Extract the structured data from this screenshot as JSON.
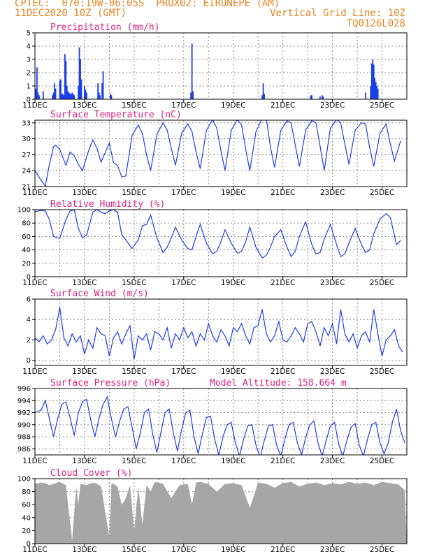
{
  "header": {
    "line1": "CPTEC:  070:19W-06:05S  PROX02: EIRUNEPE (AM)",
    "line2_left": "11DEC2020 10Z (GMT)",
    "line2_right": "Vertical Grid Line: 10Z",
    "line3_right": "TQ0126L028"
  },
  "x_tick_labels": [
    "11DEC",
    "13DEC",
    "15DEC",
    "17DEC",
    "19DEC",
    "21DEC",
    "23DEC",
    "25DEC"
  ],
  "chart_data": [
    {
      "type": "bar",
      "title": "Precipitation (mm/h)",
      "ylim": [
        0,
        5
      ],
      "yticks": [
        0,
        1,
        2,
        3,
        4,
        5
      ],
      "color": "#1a3ee8",
      "x_unit": "hours since 11DEC2020 10Z",
      "x": [
        1,
        2,
        3,
        4,
        8,
        17,
        18,
        19,
        20,
        24,
        25,
        26,
        27,
        28,
        29,
        30,
        31,
        32,
        33,
        34,
        35,
        36,
        37,
        38,
        42,
        43,
        44,
        45,
        48,
        49,
        50,
        61,
        62,
        63,
        65,
        66,
        73,
        74,
        151,
        152,
        153,
        220,
        221,
        222,
        267,
        268,
        276,
        278,
        279,
        320,
        325,
        326,
        327,
        328,
        329,
        330,
        331,
        332
      ],
      "values": [
        0.8,
        2.4,
        0.5,
        0.3,
        0.6,
        0.3,
        0.5,
        1.2,
        0.8,
        1.4,
        1.5,
        0.4,
        0.4,
        0.3,
        3.4,
        2.9,
        1.0,
        0.6,
        0.5,
        0.4,
        0.4,
        0.5,
        0.4,
        0.3,
        1.0,
        3.9,
        3.0,
        1.5,
        1.0,
        0.7,
        0.5,
        1.2,
        0.5,
        0.3,
        1.2,
        2.1,
        0.4,
        0.3,
        0.5,
        4.2,
        0.6,
        0.3,
        1.2,
        0.4,
        0.3,
        0.3,
        0.2,
        0.3,
        0.2,
        0.5,
        1.0,
        2.7,
        3.0,
        2.6,
        1.6,
        1.3,
        1.0,
        0.8
      ]
    },
    {
      "type": "line",
      "title": "Surface Temperature (nC)",
      "ylim": [
        21,
        33.5
      ],
      "yticks": [
        21,
        24,
        27,
        30,
        33
      ],
      "color": "#1a3ee8",
      "x_unit": "hours since 11DEC2020 10Z",
      "x": [
        0,
        6,
        10,
        14,
        18,
        20,
        24,
        30,
        34,
        38,
        42,
        46,
        52,
        56,
        60,
        64,
        72,
        76,
        80,
        84,
        88,
        94,
        100,
        104,
        108,
        112,
        118,
        124,
        128,
        132,
        136,
        142,
        148,
        152,
        156,
        160,
        166,
        172,
        176,
        180,
        184,
        190,
        196,
        200,
        204,
        208,
        214,
        220,
        224,
        228,
        232,
        238,
        244,
        248,
        252,
        256,
        262,
        268,
        272,
        276,
        280,
        286,
        292,
        296,
        300,
        304,
        310,
        316,
        320,
        324,
        328,
        334,
        340,
        344,
        348,
        354
      ],
      "values": [
        24.0,
        22.2,
        21.1,
        25.2,
        28.5,
        28.8,
        28.0,
        25.0,
        27.5,
        26.8,
        25.2,
        24.0,
        27.8,
        29.8,
        28.2,
        25.6,
        29.2,
        25.5,
        25.0,
        22.8,
        23.0,
        30.6,
        32.6,
        31.0,
        27.0,
        24.0,
        30.8,
        33.0,
        31.6,
        28.2,
        25.0,
        31.0,
        32.8,
        31.4,
        27.5,
        24.4,
        31.6,
        33.6,
        32.0,
        27.8,
        24.0,
        31.6,
        33.6,
        32.6,
        28.0,
        24.0,
        31.4,
        33.8,
        33.8,
        28.4,
        24.6,
        31.6,
        33.4,
        33.0,
        28.8,
        24.8,
        31.6,
        33.4,
        33.0,
        28.6,
        24.0,
        32.0,
        33.6,
        33.0,
        29.0,
        25.2,
        31.6,
        33.0,
        32.8,
        28.4,
        24.8,
        31.0,
        32.8,
        29.0,
        25.8,
        29.6
      ]
    },
    {
      "type": "line",
      "title": "Relative Humidity (%)",
      "ylim": [
        0,
        100
      ],
      "yticks": [
        0,
        20,
        40,
        60,
        80,
        100
      ],
      "color": "#1a3ee8",
      "x_unit": "hours since 11DEC2020 10Z",
      "x": [
        0,
        6,
        10,
        14,
        18,
        24,
        30,
        34,
        38,
        42,
        46,
        50,
        56,
        60,
        64,
        68,
        72,
        76,
        80,
        84,
        88,
        94,
        100,
        104,
        108,
        112,
        118,
        124,
        128,
        132,
        136,
        142,
        148,
        152,
        156,
        160,
        166,
        172,
        176,
        180,
        184,
        190,
        196,
        200,
        204,
        208,
        214,
        220,
        224,
        228,
        232,
        238,
        244,
        248,
        252,
        256,
        262,
        268,
        272,
        276,
        280,
        286,
        292,
        296,
        300,
        304,
        310,
        316,
        320,
        324,
        328,
        334,
        340,
        344,
        350,
        354
      ],
      "values": [
        97,
        99,
        98,
        85,
        60,
        57,
        85,
        98,
        100,
        72,
        58,
        62,
        96,
        100,
        96,
        94,
        98,
        100,
        96,
        63,
        55,
        42,
        55,
        76,
        78,
        92,
        58,
        36,
        44,
        58,
        74,
        55,
        42,
        40,
        60,
        78,
        50,
        34,
        38,
        52,
        70,
        50,
        35,
        38,
        52,
        74,
        44,
        28,
        32,
        44,
        60,
        70,
        44,
        30,
        38,
        60,
        82,
        48,
        34,
        36,
        56,
        78,
        48,
        30,
        34,
        50,
        72,
        48,
        36,
        40,
        64,
        86,
        94,
        88,
        48,
        54
      ]
    },
    {
      "type": "line",
      "title": "Surface Wind (m/s)",
      "ylim": [
        -0.5,
        6
      ],
      "yticks": [
        0,
        2,
        4,
        6
      ],
      "color": "#1a3ee8",
      "x_unit": "hours since 11DEC2020 10Z",
      "x": [
        0,
        4,
        8,
        12,
        16,
        20,
        24,
        28,
        32,
        36,
        40,
        44,
        48,
        52,
        56,
        60,
        64,
        68,
        72,
        76,
        80,
        84,
        88,
        92,
        96,
        100,
        104,
        108,
        112,
        116,
        120,
        124,
        128,
        132,
        136,
        140,
        144,
        148,
        152,
        156,
        160,
        164,
        168,
        172,
        176,
        180,
        184,
        188,
        192,
        196,
        200,
        204,
        208,
        212,
        216,
        220,
        224,
        228,
        232,
        236,
        240,
        244,
        248,
        252,
        256,
        260,
        264,
        268,
        272,
        276,
        280,
        284,
        288,
        292,
        296,
        300,
        304,
        308,
        312,
        316,
        320,
        324,
        328,
        332,
        336,
        340,
        344,
        348,
        352,
        356
      ],
      "values": [
        2.2,
        1.8,
        2.4,
        1.6,
        2.0,
        3.0,
        5.2,
        2.2,
        1.4,
        2.6,
        1.8,
        2.4,
        0.6,
        2.0,
        1.2,
        3.2,
        2.6,
        2.4,
        0.4,
        2.2,
        2.8,
        1.6,
        2.6,
        3.4,
        0.1,
        2.4,
        2.0,
        2.6,
        1.0,
        2.8,
        2.6,
        2.0,
        3.2,
        1.2,
        2.6,
        2.0,
        3.2,
        2.2,
        2.8,
        1.4,
        2.6,
        2.0,
        3.6,
        2.4,
        1.8,
        3.0,
        2.4,
        1.4,
        3.2,
        2.8,
        3.6,
        2.4,
        1.6,
        3.2,
        3.4,
        5.0,
        2.6,
        1.8,
        2.4,
        3.8,
        2.0,
        1.8,
        2.4,
        3.2,
        2.6,
        1.8,
        3.6,
        3.8,
        2.8,
        1.4,
        3.2,
        2.4,
        3.6,
        1.6,
        5.0,
        2.6,
        1.8,
        2.6,
        1.2,
        2.4,
        2.8,
        1.8,
        5.0,
        2.6,
        0.4,
        2.0,
        2.4,
        3.0,
        1.4,
        0.8
      ]
    },
    {
      "type": "line",
      "title": "Surface Pressure (hPa)",
      "annotation": "Model Altitude: 158.664  m",
      "ylim": [
        985,
        996
      ],
      "yticks": [
        986,
        988,
        990,
        992,
        994,
        996
      ],
      "color": "#1a3ee8",
      "x_unit": "hours since 11DEC2020 10Z",
      "x": [
        0,
        6,
        10,
        14,
        18,
        22,
        26,
        30,
        34,
        38,
        42,
        46,
        50,
        54,
        58,
        62,
        66,
        70,
        74,
        78,
        82,
        86,
        90,
        94,
        98,
        102,
        106,
        110,
        114,
        118,
        122,
        126,
        130,
        134,
        138,
        142,
        146,
        150,
        154,
        158,
        162,
        166,
        170,
        174,
        178,
        182,
        186,
        190,
        194,
        198,
        202,
        206,
        210,
        214,
        218,
        222,
        226,
        230,
        234,
        238,
        242,
        246,
        250,
        254,
        258,
        262,
        266,
        270,
        274,
        278,
        282,
        286,
        290,
        294,
        298,
        302,
        306,
        310,
        314,
        318,
        322,
        326,
        330,
        334,
        338,
        342,
        346,
        350,
        354,
        358
      ],
      "values": [
        992.0,
        992.4,
        994.0,
        991.0,
        988.0,
        991.0,
        993.4,
        993.8,
        991.2,
        988.2,
        992.0,
        993.8,
        994.2,
        990.8,
        988.0,
        991.0,
        993.4,
        994.6,
        991.0,
        988.0,
        990.6,
        992.6,
        993.0,
        989.6,
        986.0,
        988.6,
        992.0,
        992.6,
        988.4,
        985.4,
        988.8,
        992.0,
        992.6,
        988.6,
        985.6,
        989.2,
        992.0,
        992.4,
        988.0,
        985.2,
        988.4,
        991.2,
        991.4,
        987.6,
        985.0,
        988.0,
        990.0,
        990.4,
        987.0,
        984.8,
        987.6,
        989.8,
        990.0,
        986.6,
        984.6,
        987.4,
        989.8,
        990.0,
        986.6,
        984.8,
        987.6,
        990.0,
        990.4,
        987.0,
        985.0,
        987.8,
        990.0,
        990.6,
        987.0,
        984.8,
        987.4,
        989.8,
        990.4,
        986.8,
        984.8,
        987.4,
        989.6,
        990.2,
        986.6,
        984.8,
        987.6,
        990.0,
        990.4,
        987.0,
        985.2,
        987.0,
        990.4,
        992.6,
        989.0,
        987.0
      ]
    },
    {
      "type": "area",
      "title": "Cloud Cover (%)",
      "ylim": [
        0,
        100
      ],
      "yticks": [
        0,
        20,
        40,
        60,
        80,
        100
      ],
      "color": "#a6a6a6",
      "x_unit": "hours since 11DEC2020 10Z",
      "x": [
        0,
        6,
        10,
        14,
        18,
        24,
        30,
        36,
        40,
        42,
        44,
        50,
        56,
        60,
        64,
        72,
        74,
        76,
        80,
        84,
        88,
        92,
        96,
        100,
        104,
        108,
        112,
        116,
        124,
        132,
        140,
        148,
        152,
        156,
        160,
        168,
        176,
        184,
        192,
        200,
        208,
        216,
        224,
        232,
        240,
        248,
        256,
        264,
        272,
        280,
        288,
        296,
        304,
        312,
        320,
        328,
        336,
        344,
        352,
        358
      ],
      "values": [
        92,
        94,
        93,
        90,
        92,
        95,
        90,
        5,
        88,
        60,
        92,
        90,
        94,
        92,
        88,
        10,
        92,
        92,
        88,
        60,
        70,
        90,
        20,
        88,
        30,
        90,
        80,
        95,
        92,
        70,
        90,
        92,
        60,
        94,
        95,
        92,
        80,
        92,
        93,
        90,
        55,
        94,
        92,
        86,
        93,
        95,
        88,
        92,
        94,
        90,
        93,
        91,
        95,
        92,
        94,
        90,
        95,
        93,
        91,
        82
      ]
    }
  ]
}
